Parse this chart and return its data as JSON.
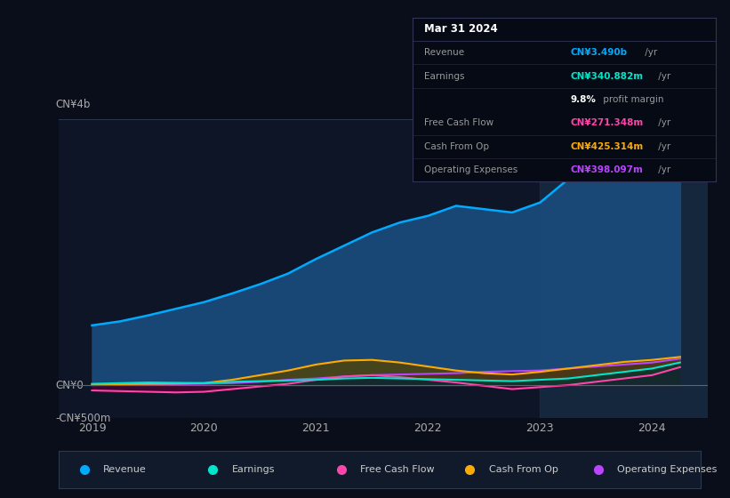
{
  "bg_color": "#0a0e1a",
  "plot_bg_color": "#0d1526",
  "title": "Mar 31 2024",
  "ylabel_top": "CN¥4b",
  "ylabel_mid": "CN¥0",
  "ylabel_bot": "-CN¥500m",
  "ylim": [
    -500,
    4000
  ],
  "xlim": [
    2018.7,
    2024.5
  ],
  "x_ticks": [
    2019,
    2020,
    2021,
    2022,
    2023,
    2024
  ],
  "highlight_x": 2023.0,
  "info_box": {
    "date": "Mar 31 2024",
    "rows": [
      {
        "label": "Revenue",
        "value": "CN¥3.490b",
        "suffix": " /yr",
        "color": "#00aaff",
        "is_margin": false
      },
      {
        "label": "Earnings",
        "value": "CN¥340.882m",
        "suffix": " /yr",
        "color": "#00e5cc",
        "is_margin": false
      },
      {
        "label": "",
        "value": "9.8%",
        "suffix": " profit margin",
        "color": "#ffffff",
        "is_margin": true
      },
      {
        "label": "Free Cash Flow",
        "value": "CN¥271.348m",
        "suffix": " /yr",
        "color": "#ff44aa",
        "is_margin": false
      },
      {
        "label": "Cash From Op",
        "value": "CN¥425.314m",
        "suffix": " /yr",
        "color": "#ffaa00",
        "is_margin": false
      },
      {
        "label": "Operating Expenses",
        "value": "CN¥398.097m",
        "suffix": " /yr",
        "color": "#bb44ff",
        "is_margin": false
      }
    ]
  },
  "series": {
    "revenue": {
      "color": "#00aaff",
      "fill_color": "#1a4a7a",
      "x": [
        2019.0,
        2019.25,
        2019.5,
        2019.75,
        2020.0,
        2020.25,
        2020.5,
        2020.75,
        2021.0,
        2021.25,
        2021.5,
        2021.75,
        2022.0,
        2022.25,
        2022.5,
        2022.75,
        2023.0,
        2023.25,
        2023.5,
        2023.75,
        2024.0,
        2024.25
      ],
      "y": [
        900,
        960,
        1050,
        1150,
        1250,
        1380,
        1520,
        1680,
        1900,
        2100,
        2300,
        2450,
        2550,
        2700,
        2650,
        2600,
        2750,
        3100,
        3350,
        3500,
        3450,
        3490
      ]
    },
    "earnings": {
      "color": "#00e5cc",
      "fill_color": "#003330",
      "x": [
        2019.0,
        2019.25,
        2019.5,
        2019.75,
        2020.0,
        2020.25,
        2020.5,
        2020.75,
        2021.0,
        2021.25,
        2021.5,
        2021.75,
        2022.0,
        2022.25,
        2022.5,
        2022.75,
        2023.0,
        2023.25,
        2023.5,
        2023.75,
        2024.0,
        2024.25
      ],
      "y": [
        20,
        30,
        40,
        35,
        30,
        50,
        60,
        70,
        80,
        100,
        110,
        100,
        90,
        80,
        70,
        60,
        80,
        100,
        150,
        200,
        250,
        341
      ]
    },
    "free_cash_flow": {
      "color": "#ff44aa",
      "fill_color": "#550033",
      "x": [
        2019.0,
        2019.25,
        2019.5,
        2019.75,
        2020.0,
        2020.25,
        2020.5,
        2020.75,
        2021.0,
        2021.25,
        2021.5,
        2021.75,
        2022.0,
        2022.25,
        2022.5,
        2022.75,
        2023.0,
        2023.25,
        2023.5,
        2023.75,
        2024.0,
        2024.25
      ],
      "y": [
        -80,
        -90,
        -100,
        -110,
        -100,
        -60,
        -20,
        20,
        80,
        130,
        150,
        120,
        80,
        40,
        -10,
        -60,
        -30,
        0,
        50,
        100,
        150,
        271
      ]
    },
    "cash_from_op": {
      "color": "#ffaa00",
      "fill_color": "#554400",
      "x": [
        2019.0,
        2019.25,
        2019.5,
        2019.75,
        2020.0,
        2020.25,
        2020.5,
        2020.75,
        2021.0,
        2021.25,
        2021.5,
        2021.75,
        2022.0,
        2022.25,
        2022.5,
        2022.75,
        2023.0,
        2023.25,
        2023.5,
        2023.75,
        2024.0,
        2024.25
      ],
      "y": [
        10,
        15,
        20,
        25,
        30,
        80,
        150,
        220,
        310,
        370,
        380,
        340,
        280,
        220,
        180,
        160,
        200,
        250,
        300,
        350,
        380,
        425
      ]
    },
    "operating_expenses": {
      "color": "#bb44ff",
      "fill_color": "#330055",
      "x": [
        2019.0,
        2019.25,
        2019.5,
        2019.75,
        2020.0,
        2020.25,
        2020.5,
        2020.75,
        2021.0,
        2021.25,
        2021.5,
        2021.75,
        2022.0,
        2022.25,
        2022.5,
        2022.75,
        2023.0,
        2023.25,
        2023.5,
        2023.75,
        2024.0,
        2024.25
      ],
      "y": [
        0,
        5,
        10,
        15,
        20,
        30,
        50,
        80,
        100,
        130,
        150,
        160,
        170,
        180,
        200,
        210,
        220,
        250,
        280,
        310,
        340,
        398
      ]
    }
  },
  "legend": [
    {
      "label": "Revenue",
      "color": "#00aaff"
    },
    {
      "label": "Earnings",
      "color": "#00e5cc"
    },
    {
      "label": "Free Cash Flow",
      "color": "#ff44aa"
    },
    {
      "label": "Cash From Op",
      "color": "#ffaa00"
    },
    {
      "label": "Operating Expenses",
      "color": "#bb44ff"
    }
  ]
}
